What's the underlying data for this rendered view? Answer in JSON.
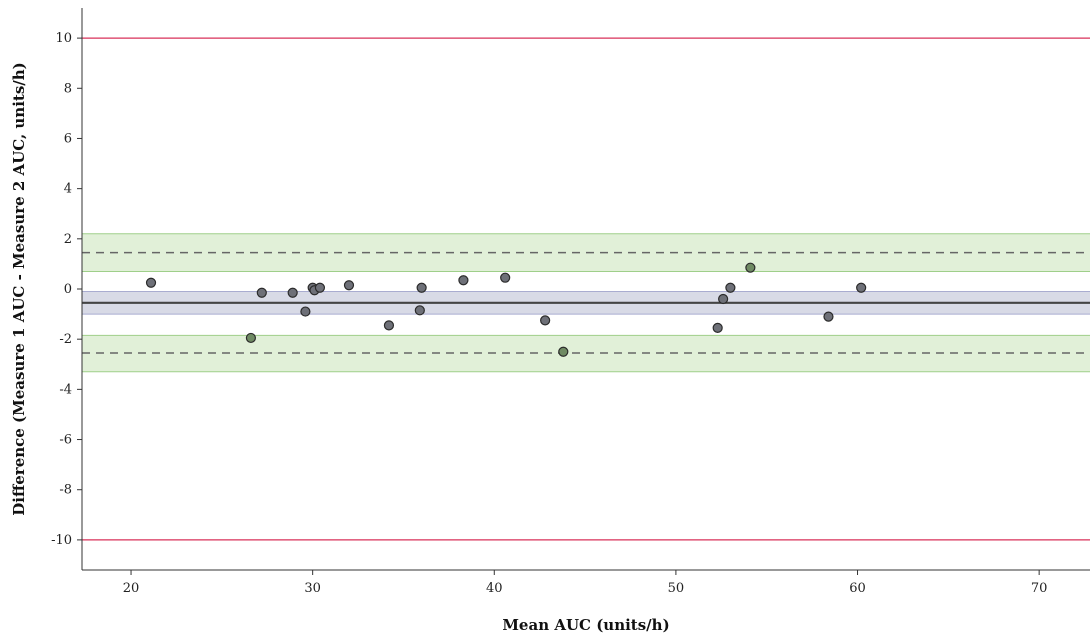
{
  "chart_data": {
    "type": "scatter",
    "title": "",
    "xlabel": "Mean AUC (units/h)",
    "ylabel": "Difference (Measure 1 AUC - Measure 2 AUC, units/h)",
    "xlim": [
      17.3,
      72.8
    ],
    "ylim": [
      -11.2,
      11.2
    ],
    "xticks": [
      20,
      30,
      40,
      50,
      60,
      70
    ],
    "yticks": [
      -10,
      -8,
      -6,
      -4,
      -2,
      0,
      2,
      4,
      6,
      8,
      10
    ],
    "grid": false,
    "points": [
      {
        "x": 21.1,
        "y": 0.25,
        "color": "#6e7078"
      },
      {
        "x": 26.6,
        "y": -1.95,
        "color": "#6f8a63"
      },
      {
        "x": 27.2,
        "y": -0.15,
        "color": "#6e7078"
      },
      {
        "x": 28.9,
        "y": -0.15,
        "color": "#6e7078"
      },
      {
        "x": 29.6,
        "y": -0.9,
        "color": "#6e7078"
      },
      {
        "x": 30.0,
        "y": 0.05,
        "color": "#6e7078"
      },
      {
        "x": 30.1,
        "y": -0.05,
        "color": "#6e7078"
      },
      {
        "x": 30.4,
        "y": 0.05,
        "color": "#6e7078"
      },
      {
        "x": 32.0,
        "y": 0.15,
        "color": "#6e7078"
      },
      {
        "x": 34.2,
        "y": -1.45,
        "color": "#6e7078"
      },
      {
        "x": 35.9,
        "y": -0.85,
        "color": "#6e7078"
      },
      {
        "x": 36.0,
        "y": 0.05,
        "color": "#6e7078"
      },
      {
        "x": 38.3,
        "y": 0.35,
        "color": "#6e7078"
      },
      {
        "x": 40.6,
        "y": 0.45,
        "color": "#6e7078"
      },
      {
        "x": 42.8,
        "y": -1.25,
        "color": "#6e7078"
      },
      {
        "x": 43.8,
        "y": -2.5,
        "color": "#6f8a63"
      },
      {
        "x": 52.3,
        "y": -1.55,
        "color": "#6e7078"
      },
      {
        "x": 52.6,
        "y": -0.4,
        "color": "#6e7078"
      },
      {
        "x": 53.0,
        "y": 0.05,
        "color": "#6e7078"
      },
      {
        "x": 54.1,
        "y": 0.85,
        "color": "#6f8a63"
      },
      {
        "x": 58.4,
        "y": -1.1,
        "color": "#6e7078"
      },
      {
        "x": 60.2,
        "y": 0.05,
        "color": "#6e7078"
      }
    ],
    "reference_lines": {
      "mean_difference": -0.55,
      "upper_limit_of_agreement": 1.45,
      "lower_limit_of_agreement": -2.55,
      "acceptance_limits": [
        10,
        -10
      ]
    },
    "bands": [
      {
        "role": "upper-loa-ci",
        "from": 0.7,
        "to": 2.2,
        "color": "#e1f0d8",
        "edge": "#9fcf8a"
      },
      {
        "role": "lower-loa-ci",
        "from": -3.3,
        "to": -1.85,
        "color": "#e1f0d8",
        "edge": "#9fcf8a"
      },
      {
        "role": "mean-ci",
        "from": -1.0,
        "to": -0.1,
        "color": "#d8dae6",
        "edge": "#a9acd0"
      }
    ],
    "colors": {
      "acceptance_line": "#d9305a",
      "mean_line": "#444444",
      "loa_line": "#666666",
      "axis": "#333333",
      "point_stroke": "#2b2b2b"
    }
  }
}
